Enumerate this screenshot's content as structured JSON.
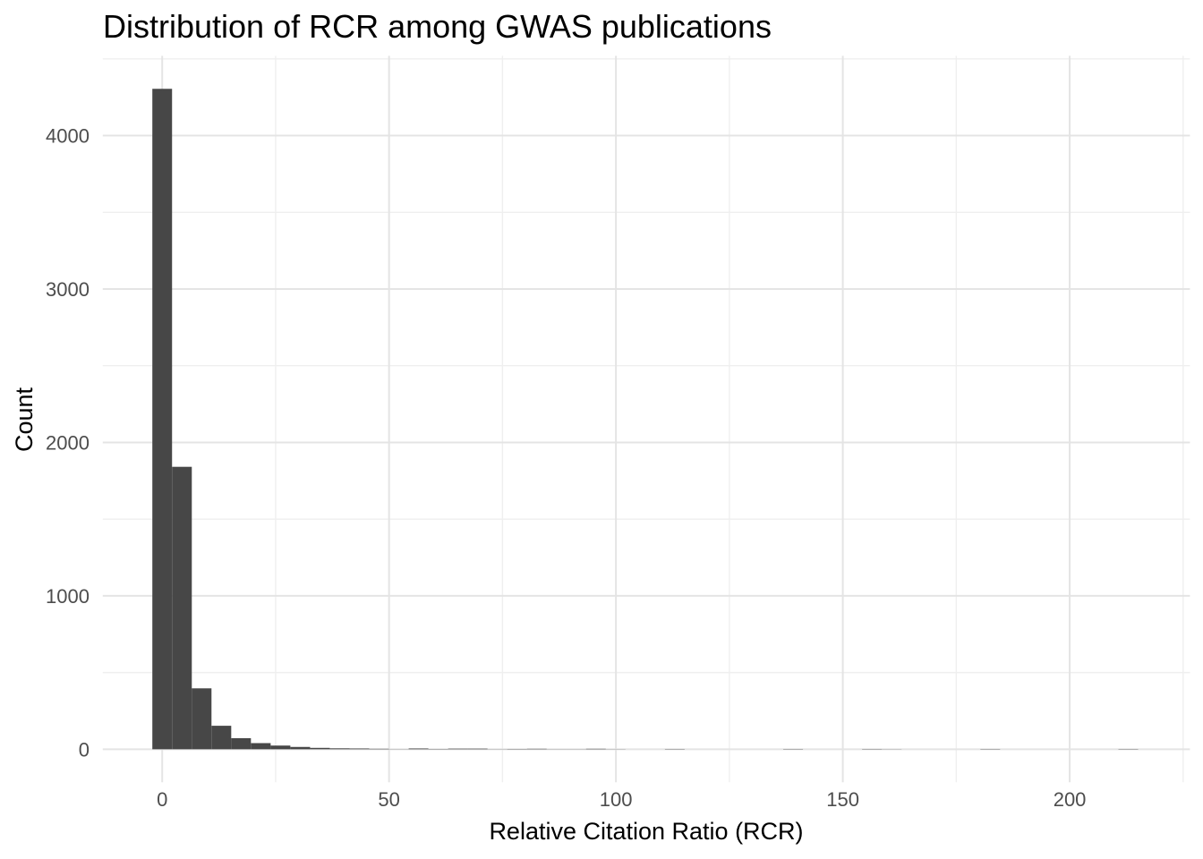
{
  "page": {
    "background_color": "#ffffff"
  },
  "chart_data": {
    "type": "bar",
    "subtype": "histogram",
    "title": "Distribution of RCR among GWAS publications",
    "xlabel": "Relative Citation Ratio (RCR)",
    "ylabel": "Count",
    "legend_position": "none",
    "grid": true,
    "bar_color": "#474747",
    "grid_major_color": "#e4e4e4",
    "grid_minor_color": "#efefef",
    "tick_label_color": "#4d4d4d",
    "title_color": "#000000",
    "xlim": [
      -13.1,
      226.5
    ],
    "ylim": [
      -215,
      4520
    ],
    "x_major_ticks": [
      0,
      50,
      100,
      150,
      200
    ],
    "x_minor_ticks": [
      25,
      75,
      125,
      175,
      225
    ],
    "y_major_ticks": [
      0,
      1000,
      2000,
      3000,
      4000
    ],
    "y_minor_ticks": [
      500,
      1500,
      2500,
      3500,
      4500
    ],
    "bin_width": 4.345,
    "bin_centers": [
      0,
      4.35,
      8.69,
      13.04,
      17.38,
      21.73,
      26.07,
      30.42,
      34.76,
      39.11,
      43.45,
      47.8,
      52.14,
      56.49,
      60.83,
      65.18,
      69.52,
      73.87,
      78.21,
      82.56,
      86.9,
      91.25,
      95.59,
      99.94,
      104.28,
      108.63,
      112.97,
      117.32,
      121.66,
      126.01,
      130.35,
      134.7,
      139.04,
      143.39,
      147.73,
      152.08,
      156.42,
      160.77,
      165.11,
      169.46,
      173.8,
      178.15,
      182.49,
      186.84,
      191.18,
      195.53,
      199.87,
      204.22,
      208.56,
      212.91
    ],
    "counts": [
      4305,
      1841,
      397,
      153,
      72,
      40,
      24,
      15,
      9,
      6,
      5,
      3,
      1,
      5,
      2,
      4,
      4,
      1,
      2,
      3,
      1,
      1,
      3,
      1,
      0,
      0,
      2,
      0,
      0,
      0,
      0,
      0,
      2,
      0,
      0,
      0,
      2,
      1,
      0,
      0,
      0,
      0,
      2,
      0,
      0,
      0,
      0,
      0,
      0,
      2
    ]
  }
}
